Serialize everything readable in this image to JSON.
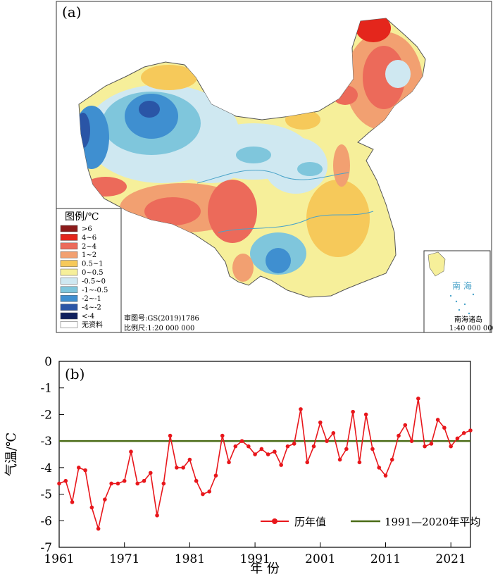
{
  "panel_a": {
    "label": "(a)",
    "legend": {
      "title": "图例/℃",
      "items": [
        {
          "label": ">6",
          "color": "#8b1a1a"
        },
        {
          "label": "4~6",
          "color": "#e4261c"
        },
        {
          "label": "2~4",
          "color": "#ec6a5a"
        },
        {
          "label": "1~2",
          "color": "#f2a071"
        },
        {
          "label": "0.5~1",
          "color": "#f6c95a"
        },
        {
          "label": "0~0.5",
          "color": "#f6ef9a"
        },
        {
          "label": "-0.5~0",
          "color": "#cfe8f1"
        },
        {
          "label": "-1~-0.5",
          "color": "#7fc6dc"
        },
        {
          "label": "-2~-1",
          "color": "#3f8fd0"
        },
        {
          "label": "-4~-2",
          "color": "#2a55a6"
        },
        {
          "label": "<-4",
          "color": "#0f1f5c"
        },
        {
          "label": "无资料",
          "color": "#ffffff"
        }
      ]
    },
    "map_number": "审图号:GS(2019)1786",
    "scale": "比例尺:1:20 000 000",
    "inset": {
      "sea_label": "南 海",
      "islands_label": "南海诸岛",
      "scale": "1:40 000 000"
    }
  },
  "panel_b": {
    "label": "(b)"
  },
  "chart_data": {
    "type": "line",
    "xlabel": "年 份",
    "ylabel": "气温/℃",
    "xlim": [
      1961,
      2024
    ],
    "ylim": [
      -7,
      0
    ],
    "xticks": [
      1961,
      1971,
      1981,
      1991,
      2001,
      2011,
      2021
    ],
    "yticks": [
      0,
      -1,
      -2,
      -3,
      -4,
      -5,
      -6,
      -7
    ],
    "legend_position": "bottom-right",
    "series": [
      {
        "name": "历年值",
        "color": "#e8161b",
        "x": [
          1961,
          1962,
          1963,
          1964,
          1965,
          1966,
          1967,
          1968,
          1969,
          1970,
          1971,
          1972,
          1973,
          1974,
          1975,
          1976,
          1977,
          1978,
          1979,
          1980,
          1981,
          1982,
          1983,
          1984,
          1985,
          1986,
          1987,
          1988,
          1989,
          1990,
          1991,
          1992,
          1993,
          1994,
          1995,
          1996,
          1997,
          1998,
          1999,
          2000,
          2001,
          2002,
          2003,
          2004,
          2005,
          2006,
          2007,
          2008,
          2009,
          2010,
          2011,
          2012,
          2013,
          2014,
          2015,
          2016,
          2017,
          2018,
          2019,
          2020,
          2021,
          2022,
          2023,
          2024
        ],
        "values": [
          -4.6,
          -4.5,
          -5.3,
          -4.0,
          -4.1,
          -5.5,
          -6.3,
          -5.2,
          -4.6,
          -4.6,
          -4.5,
          -3.4,
          -4.6,
          -4.5,
          -4.2,
          -5.8,
          -4.6,
          -2.8,
          -4.0,
          -4.0,
          -3.7,
          -4.5,
          -5.0,
          -4.9,
          -4.3,
          -2.8,
          -3.8,
          -3.2,
          -3.0,
          -3.2,
          -3.5,
          -3.3,
          -3.5,
          -3.4,
          -3.9,
          -3.2,
          -3.1,
          -1.8,
          -3.8,
          -3.2,
          -2.3,
          -3.0,
          -2.7,
          -3.7,
          -3.3,
          -1.9,
          -3.8,
          -2.0,
          -3.3,
          -4.0,
          -4.3,
          -3.7,
          -2.8,
          -2.4,
          -3.0,
          -1.4,
          -3.2,
          -3.1,
          -2.2,
          -2.5,
          -3.2,
          -2.9,
          -2.7,
          -2.6
        ]
      },
      {
        "name": "1991—2020年平均",
        "color": "#4a6b16",
        "x": [
          1961,
          2024
        ],
        "values": [
          -3.0,
          -3.0
        ]
      }
    ]
  }
}
